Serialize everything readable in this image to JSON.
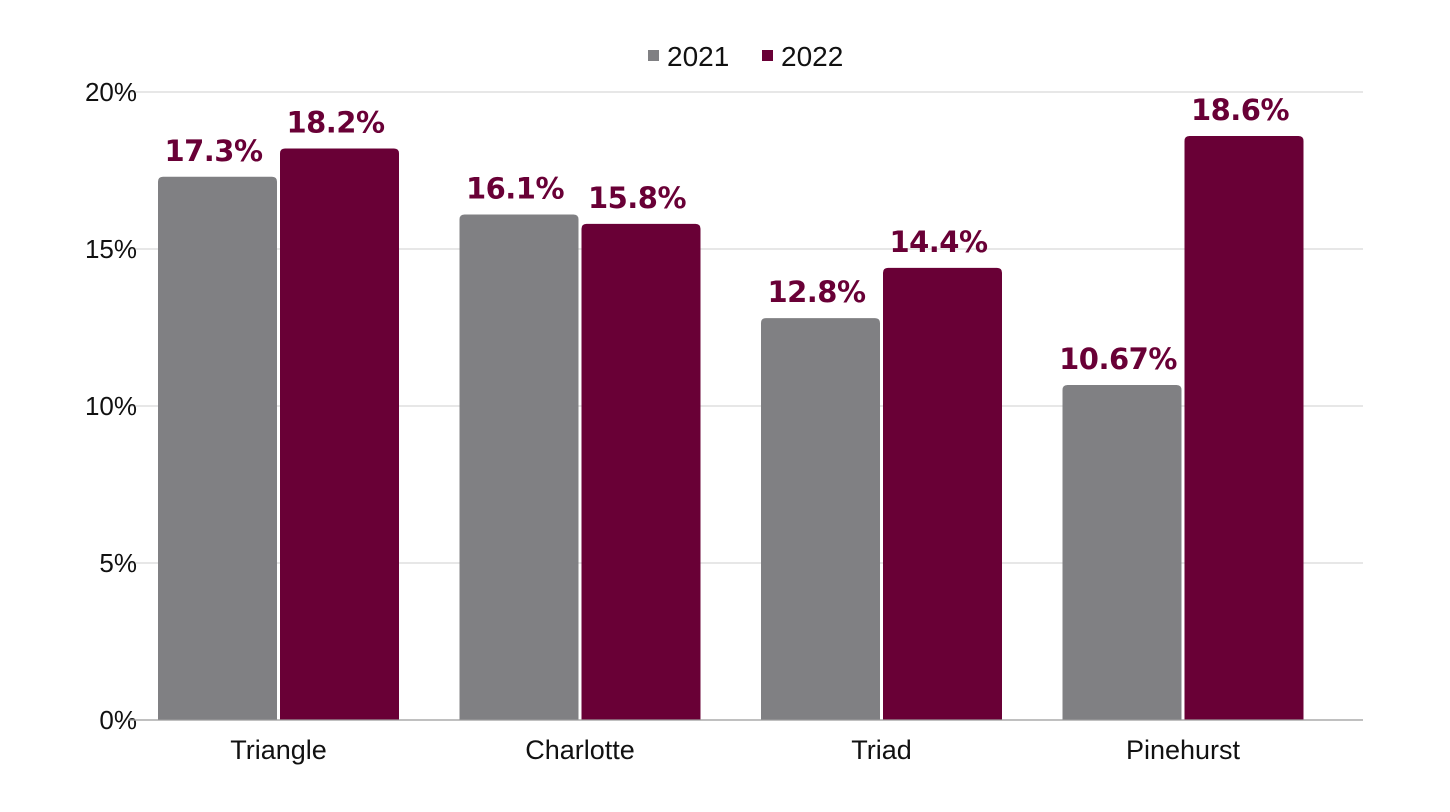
{
  "chart_data": {
    "type": "bar",
    "title": "",
    "xlabel": "",
    "ylabel": "",
    "categories": [
      "Triangle",
      "Charlotte",
      "Triad",
      "Pinehurst"
    ],
    "series": [
      {
        "name": "2021",
        "color": "#808083",
        "values": [
          17.3,
          16.1,
          12.8,
          10.67
        ],
        "labels": [
          "17.3%",
          "16.1%",
          "12.8%",
          "10.67%"
        ]
      },
      {
        "name": "2022",
        "color": "#690036",
        "values": [
          18.2,
          15.8,
          14.4,
          18.6
        ],
        "labels": [
          "18.2%",
          "15.8%",
          "14.4%",
          "18.6%"
        ]
      }
    ],
    "data_label_color": "#690036",
    "ylim": [
      0,
      20
    ],
    "yticks": [
      0,
      5,
      10,
      15,
      20
    ],
    "ytick_labels": [
      "0%",
      "5%",
      "10%",
      "15%",
      "20%"
    ],
    "grid": true,
    "legend": "top-center"
  }
}
